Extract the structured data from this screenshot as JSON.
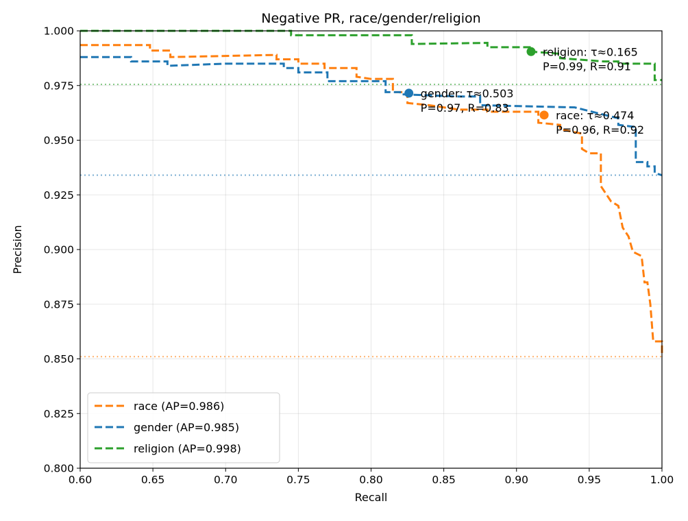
{
  "chart_data": {
    "type": "line",
    "title": "Negative PR, race/gender/religion",
    "xlabel": "Recall",
    "ylabel": "Precision",
    "xlim": [
      0.6,
      1.0
    ],
    "ylim": [
      0.8,
      1.0
    ],
    "xticks": [
      "0.60",
      "0.65",
      "0.70",
      "0.75",
      "0.80",
      "0.85",
      "0.90",
      "0.95",
      "1.00"
    ],
    "yticks": [
      "0.800",
      "0.825",
      "0.850",
      "0.875",
      "0.900",
      "0.925",
      "0.950",
      "0.975",
      "1.000"
    ],
    "grid": true,
    "legend_position": "lower-left",
    "series": [
      {
        "name": "race (AP=0.986)",
        "color": "#ff7f0e",
        "baseline": 0.851,
        "points": [
          [
            0.6,
            0.9935
          ],
          [
            0.648,
            0.9935
          ],
          [
            0.648,
            0.991
          ],
          [
            0.662,
            0.991
          ],
          [
            0.662,
            0.988
          ],
          [
            0.735,
            0.989
          ],
          [
            0.735,
            0.987
          ],
          [
            0.75,
            0.987
          ],
          [
            0.75,
            0.985
          ],
          [
            0.768,
            0.985
          ],
          [
            0.768,
            0.983
          ],
          [
            0.79,
            0.983
          ],
          [
            0.79,
            0.979
          ],
          [
            0.8,
            0.978
          ],
          [
            0.815,
            0.978
          ],
          [
            0.815,
            0.972
          ],
          [
            0.825,
            0.972
          ],
          [
            0.825,
            0.967
          ],
          [
            0.84,
            0.966
          ],
          [
            0.86,
            0.964
          ],
          [
            0.88,
            0.964
          ],
          [
            0.88,
            0.963
          ],
          [
            0.915,
            0.963
          ],
          [
            0.915,
            0.958
          ],
          [
            0.93,
            0.957
          ],
          [
            0.93,
            0.955
          ],
          [
            0.945,
            0.953
          ],
          [
            0.945,
            0.946
          ],
          [
            0.95,
            0.944
          ],
          [
            0.958,
            0.944
          ],
          [
            0.958,
            0.929
          ],
          [
            0.962,
            0.925
          ],
          [
            0.965,
            0.922
          ],
          [
            0.97,
            0.92
          ],
          [
            0.973,
            0.91
          ],
          [
            0.977,
            0.906
          ],
          [
            0.98,
            0.899
          ],
          [
            0.986,
            0.897
          ],
          [
            0.988,
            0.885
          ],
          [
            0.99,
            0.885
          ],
          [
            0.992,
            0.875
          ],
          [
            0.994,
            0.858
          ],
          [
            1.0,
            0.858
          ],
          [
            1.0,
            0.851
          ]
        ]
      },
      {
        "name": "gender (AP=0.985)",
        "color": "#1f77b4",
        "baseline": 0.934,
        "points": [
          [
            0.6,
            0.988
          ],
          [
            0.635,
            0.988
          ],
          [
            0.635,
            0.986
          ],
          [
            0.66,
            0.986
          ],
          [
            0.66,
            0.984
          ],
          [
            0.7,
            0.985
          ],
          [
            0.74,
            0.985
          ],
          [
            0.74,
            0.983
          ],
          [
            0.75,
            0.983
          ],
          [
            0.75,
            0.981
          ],
          [
            0.77,
            0.981
          ],
          [
            0.77,
            0.977
          ],
          [
            0.81,
            0.977
          ],
          [
            0.81,
            0.972
          ],
          [
            0.82,
            0.972
          ],
          [
            0.82,
            0.971
          ],
          [
            0.86,
            0.97
          ],
          [
            0.875,
            0.97
          ],
          [
            0.875,
            0.966
          ],
          [
            0.94,
            0.965
          ],
          [
            0.97,
            0.96
          ],
          [
            0.97,
            0.957
          ],
          [
            0.982,
            0.956
          ],
          [
            0.982,
            0.94
          ],
          [
            0.99,
            0.94
          ],
          [
            0.99,
            0.938
          ],
          [
            0.995,
            0.938
          ],
          [
            0.995,
            0.935
          ],
          [
            1.0,
            0.934
          ]
        ]
      },
      {
        "name": "religion (AP=0.998)",
        "color": "#2ca02c",
        "baseline": 0.9755,
        "points": [
          [
            0.6,
            1.0
          ],
          [
            0.745,
            1.0
          ],
          [
            0.745,
            0.998
          ],
          [
            0.828,
            0.998
          ],
          [
            0.828,
            0.994
          ],
          [
            0.88,
            0.9945
          ],
          [
            0.88,
            0.9925
          ],
          [
            0.91,
            0.9925
          ],
          [
            0.91,
            0.9905
          ],
          [
            0.93,
            0.9895
          ],
          [
            0.93,
            0.9875
          ],
          [
            0.96,
            0.986
          ],
          [
            0.97,
            0.986
          ],
          [
            0.97,
            0.985
          ],
          [
            0.995,
            0.985
          ],
          [
            0.995,
            0.9775
          ],
          [
            1.0,
            0.9775
          ]
        ]
      }
    ],
    "annotations": [
      {
        "series": "race",
        "x": 0.919,
        "y": 0.9615,
        "line1": "race: τ≈0.474",
        "line2": "P=0.96, R=0.92",
        "color": "#ff7f0e"
      },
      {
        "series": "gender",
        "x": 0.826,
        "y": 0.9715,
        "line1": "gender: τ≈0.503",
        "line2": "P=0.97, R=0.83",
        "color": "#1f77b4"
      },
      {
        "series": "religion",
        "x": 0.91,
        "y": 0.9905,
        "line1": "religion: τ≈0.165",
        "line2": "P=0.99, R=0.91",
        "color": "#2ca02c"
      }
    ]
  }
}
